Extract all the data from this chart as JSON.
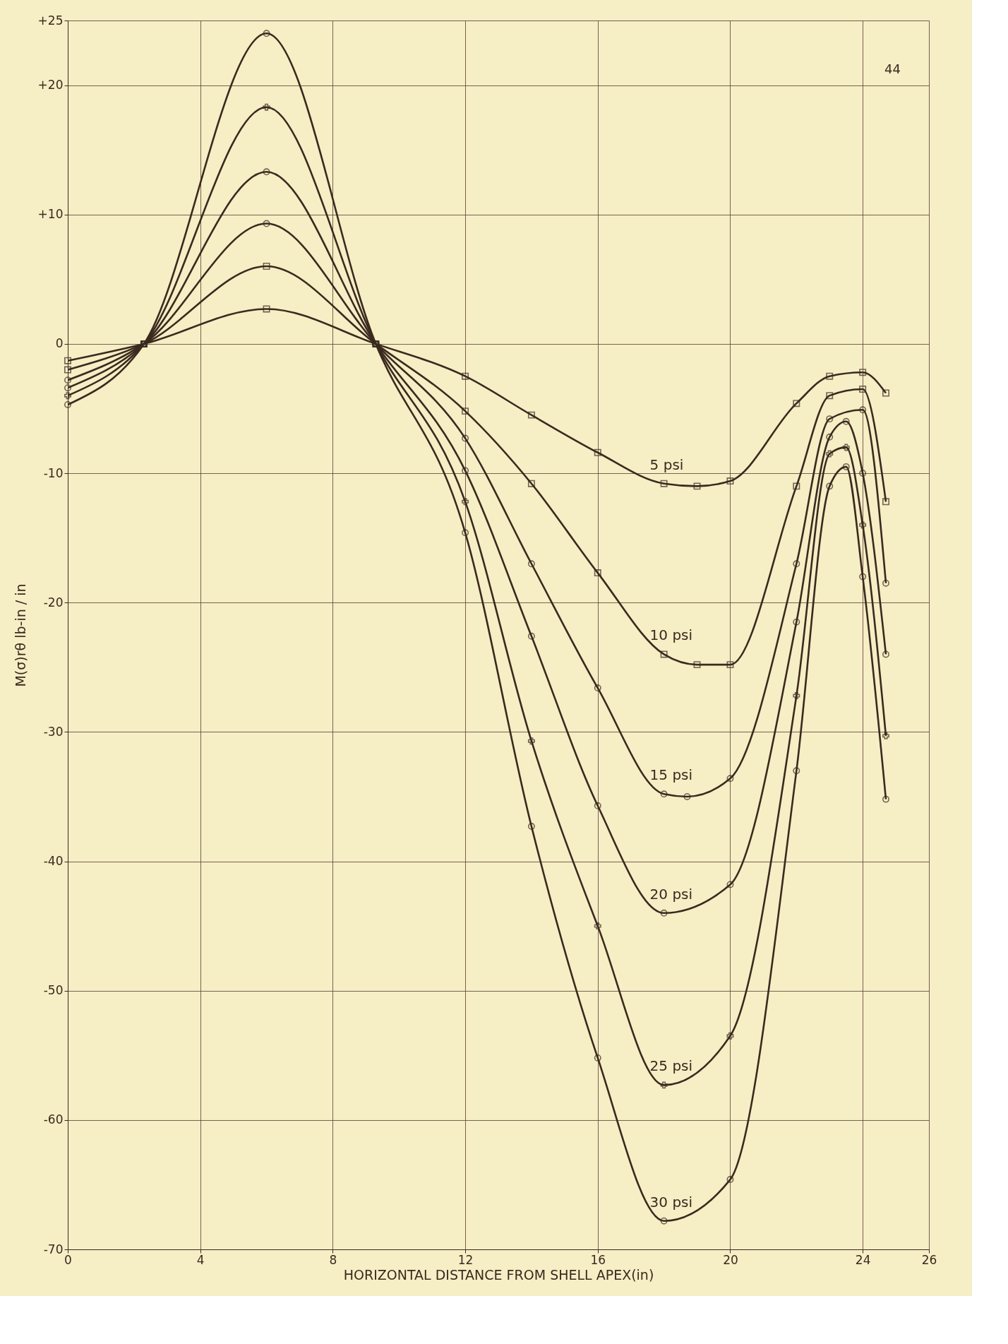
{
  "chart_data": {
    "type": "line",
    "xlabel": "HORIZONTAL DISTANCE FROM SHELL APEX(in)",
    "ylabel": "M(σ)rθ   lb-in / in",
    "annotations": [
      "44"
    ],
    "xlim": [
      0,
      26
    ],
    "ylim": [
      -70,
      25
    ],
    "xticks": [
      0,
      4,
      8,
      12,
      16,
      20,
      24,
      26
    ],
    "yticks": [
      {
        "value": 25,
        "label": "+25"
      },
      {
        "value": 20,
        "label": "+20"
      },
      {
        "value": 10,
        "label": "+10"
      },
      0,
      -10,
      -20,
      -30,
      -40,
      -50,
      -60,
      -70
    ],
    "grid": true,
    "line_style": "solid",
    "series": [
      {
        "name": "5 psi",
        "color": "#3a2a1e",
        "marker": "square",
        "x": [
          0,
          2.3,
          6,
          9.3,
          12,
          14,
          16,
          18,
          19,
          20,
          22,
          23,
          24,
          24.7
        ],
        "values": [
          -1.3,
          0,
          2.7,
          0,
          -2.5,
          -5.5,
          -8.4,
          -10.8,
          -11,
          -10.6,
          -4.6,
          -2.5,
          -2.2,
          -3.8
        ]
      },
      {
        "name": "10 psi",
        "color": "#3a2a1e",
        "marker": "square",
        "x": [
          0,
          2.3,
          6,
          9.3,
          12,
          14,
          16,
          18,
          19,
          20,
          22,
          23,
          24,
          24.7
        ],
        "values": [
          -2,
          0,
          6,
          0,
          -5.2,
          -10.8,
          -17.7,
          -24,
          -24.8,
          -24.8,
          -11,
          -4,
          -3.5,
          -12.2
        ]
      },
      {
        "name": "15 psi",
        "color": "#3a2a1e",
        "marker": "circle",
        "x": [
          0,
          2.3,
          6,
          9.3,
          12,
          14,
          16,
          18,
          18.7,
          20,
          22,
          23,
          24,
          24.7
        ],
        "values": [
          -2.8,
          0,
          9.3,
          0,
          -7.3,
          -17,
          -26.6,
          -34.8,
          -35,
          -33.6,
          -17,
          -5.8,
          -5.1,
          -18.5
        ]
      },
      {
        "name": "20 psi",
        "color": "#3a2a1e",
        "marker": "circle",
        "x": [
          0,
          2.3,
          6,
          9.3,
          12,
          14,
          16,
          18,
          20,
          22,
          23,
          23.5,
          24,
          24.7
        ],
        "values": [
          -3.4,
          0,
          13.3,
          0,
          -9.8,
          -22.6,
          -35.7,
          -44,
          -41.8,
          -21.5,
          -7.2,
          -6,
          -10,
          -24
        ]
      },
      {
        "name": "25 psi",
        "color": "#3a2a1e",
        "marker": "cross",
        "x": [
          0,
          2.3,
          6,
          9.3,
          12,
          14,
          16,
          18,
          20,
          22,
          23,
          23.5,
          24,
          24.7
        ],
        "values": [
          -4,
          0,
          18.3,
          0,
          -12.2,
          -30.7,
          -45,
          -57.3,
          -53.5,
          -27.2,
          -8.5,
          -8,
          -14,
          -30.3
        ]
      },
      {
        "name": "30 psi",
        "color": "#3a2a1e",
        "marker": "circle",
        "x": [
          0,
          2.3,
          6,
          9.3,
          12,
          14,
          16,
          18,
          20,
          22,
          23,
          23.5,
          24,
          24.7
        ],
        "values": [
          -4.7,
          0,
          24,
          0,
          -14.6,
          -37.3,
          -55.2,
          -67.8,
          -64.6,
          -33,
          -11,
          -9.5,
          -18,
          -35.2
        ]
      }
    ]
  }
}
